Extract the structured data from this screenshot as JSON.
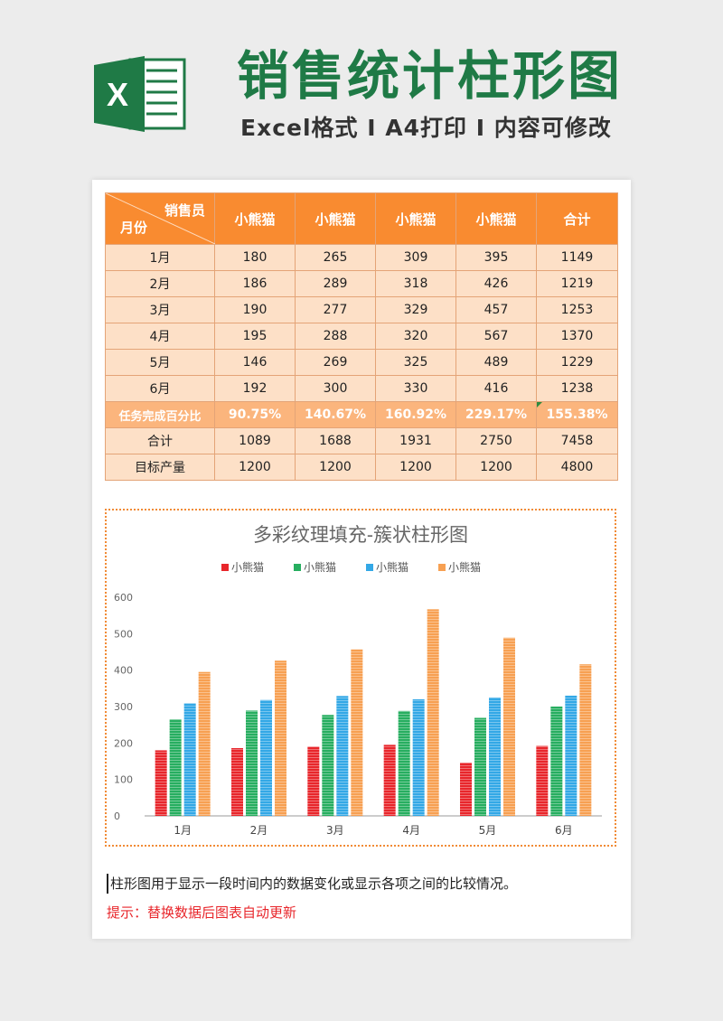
{
  "header": {
    "title": "销售统计柱形图",
    "subtitle": "Excel格式 I A4打印 I 内容可修改",
    "logo_letter": "X"
  },
  "table": {
    "corner_top": "销售员",
    "corner_bottom": "月份",
    "columns": [
      "小熊猫",
      "小熊猫",
      "小熊猫",
      "小熊猫",
      "合计"
    ],
    "rows": [
      {
        "label": "1月",
        "cells": [
          "180",
          "265",
          "309",
          "395",
          "1149"
        ]
      },
      {
        "label": "2月",
        "cells": [
          "186",
          "289",
          "318",
          "426",
          "1219"
        ]
      },
      {
        "label": "3月",
        "cells": [
          "190",
          "277",
          "329",
          "457",
          "1253"
        ]
      },
      {
        "label": "4月",
        "cells": [
          "195",
          "288",
          "320",
          "567",
          "1370"
        ]
      },
      {
        "label": "5月",
        "cells": [
          "146",
          "269",
          "325",
          "489",
          "1229"
        ]
      },
      {
        "label": "6月",
        "cells": [
          "192",
          "300",
          "330",
          "416",
          "1238"
        ]
      }
    ],
    "pct_row": {
      "label": "任务完成百分比",
      "cells": [
        "90.75%",
        "140.67%",
        "160.92%",
        "229.17%",
        "155.38%"
      ]
    },
    "total_row": {
      "label": "合计",
      "cells": [
        "1089",
        "1688",
        "1931",
        "2750",
        "7458"
      ]
    },
    "target_row": {
      "label": "目标产量",
      "cells": [
        "1200",
        "1200",
        "1200",
        "1200",
        "4800"
      ]
    }
  },
  "chart_data": {
    "type": "bar",
    "title": "多彩纹理填充-簇状柱形图",
    "categories": [
      "1月",
      "2月",
      "3月",
      "4月",
      "5月",
      "6月"
    ],
    "series": [
      {
        "name": "小熊猫",
        "color": "#e8262b",
        "values": [
          180,
          186,
          190,
          195,
          146,
          192
        ]
      },
      {
        "name": "小熊猫",
        "color": "#27ae60",
        "values": [
          265,
          289,
          277,
          288,
          269,
          300
        ]
      },
      {
        "name": "小熊猫",
        "color": "#33a8e6",
        "values": [
          309,
          318,
          329,
          320,
          325,
          330
        ]
      },
      {
        "name": "小熊猫",
        "color": "#f7a052",
        "values": [
          395,
          426,
          457,
          567,
          489,
          416
        ]
      }
    ],
    "yticks": [
      "0",
      "100",
      "200",
      "300",
      "400",
      "500",
      "600"
    ],
    "ylim": [
      0,
      600
    ],
    "legend_position": "top-center",
    "grid": false
  },
  "footer": {
    "note": "柱形图用于显示一段时间内的数据变化或显示各项之间的比较情况。",
    "tip": "提示：替换数据后图表自动更新"
  }
}
